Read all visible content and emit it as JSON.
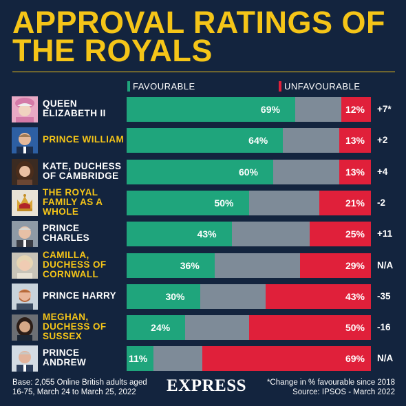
{
  "title": "APPROVAL RATINGS OF THE ROYALS",
  "legend": {
    "favourable": "FAVOURABLE",
    "unfavourable": "UNFAVOURABLE"
  },
  "colors": {
    "favourable": "#1fa57c",
    "unfavourable": "#e0203a",
    "neutral": "#7e8b98",
    "accent": "#f5c518",
    "background": "#13243e"
  },
  "chart_data": {
    "type": "bar",
    "title": "APPROVAL RATINGS OF THE ROYALS",
    "categories": [
      "QUEEN ELIZABETH II",
      "PRINCE WILLIAM",
      "KATE, DUCHESS OF CAMBRIDGE",
      "THE ROYAL FAMILY AS A WHOLE",
      "PRINCE CHARLES",
      "CAMILLA, DUCHESS OF CORNWALL",
      "PRINCE HARRY",
      "MEGHAN, DUCHESS OF SUSSEX",
      "PRINCE ANDREW"
    ],
    "series": [
      {
        "name": "FAVOURABLE",
        "values": [
          69,
          64,
          60,
          50,
          43,
          36,
          30,
          24,
          11
        ]
      },
      {
        "name": "UNFAVOURABLE",
        "values": [
          12,
          13,
          13,
          21,
          25,
          29,
          43,
          50,
          69
        ]
      }
    ],
    "change": [
      "+7*",
      "+2",
      "+4",
      "-2",
      "+11",
      "N/A",
      "-35",
      "-16",
      "N/A"
    ],
    "ylim": [
      0,
      100
    ]
  },
  "rows": [
    {
      "name": "QUEEN ELIZABETH II",
      "fav": "69%",
      "unfav": "12%",
      "change": "+7*",
      "gold": false,
      "portrait": "queen-icon"
    },
    {
      "name": "PRINCE WILLIAM",
      "fav": "64%",
      "unfav": "13%",
      "change": "+2",
      "gold": true,
      "portrait": "william-icon"
    },
    {
      "name": "KATE, DUCHESS OF CAMBRIDGE",
      "fav": "60%",
      "unfav": "13%",
      "change": "+4",
      "gold": false,
      "portrait": "kate-icon"
    },
    {
      "name": "THE ROYAL FAMILY AS A WHOLE",
      "fav": "50%",
      "unfav": "21%",
      "change": "-2",
      "gold": true,
      "portrait": "crown-icon"
    },
    {
      "name": "PRINCE CHARLES",
      "fav": "43%",
      "unfav": "25%",
      "change": "+11",
      "gold": false,
      "portrait": "charles-icon"
    },
    {
      "name": "CAMILLA, DUCHESS OF CORNWALL",
      "fav": "36%",
      "unfav": "29%",
      "change": "N/A",
      "gold": true,
      "portrait": "camilla-icon"
    },
    {
      "name": "PRINCE HARRY",
      "fav": "30%",
      "unfav": "43%",
      "change": "-35",
      "gold": false,
      "portrait": "harry-icon"
    },
    {
      "name": "MEGHAN, DUCHESS OF SUSSEX",
      "fav": "24%",
      "unfav": "50%",
      "change": "-16",
      "gold": true,
      "portrait": "meghan-icon"
    },
    {
      "name": "PRINCE ANDREW",
      "fav": "11%",
      "unfav": "69%",
      "change": "N/A",
      "gold": false,
      "portrait": "andrew-icon"
    }
  ],
  "footer": {
    "base": "Base: 2,055 Online British adults aged 16-75, March 24 to March 25, 2022",
    "brand": "EXPRESS",
    "note": "*Change in % favourable since 2018",
    "source": "Source: IPSOS - March 2022"
  }
}
